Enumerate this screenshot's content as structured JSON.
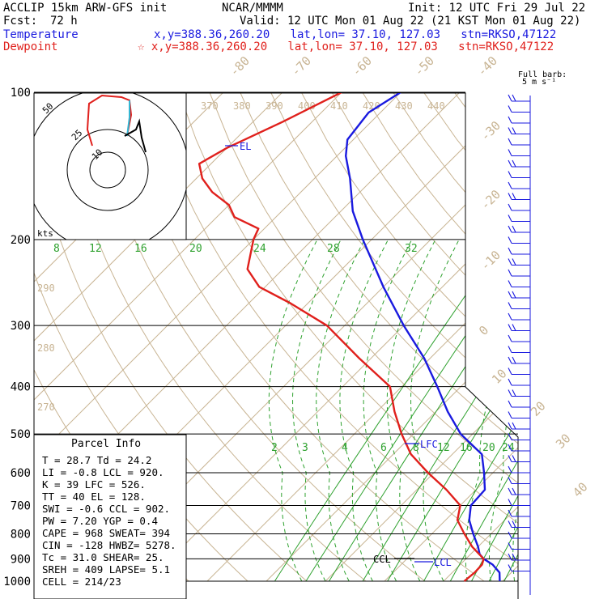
{
  "header": {
    "model": "ACCLIP 15km ARW-GFS init",
    "org": "NCAR/MMMM",
    "init": "Init: 12 UTC Fri 29 Jul 22",
    "fcst_label": "Fcst:",
    "fcst_value": "72 h",
    "valid": "Valid: 12 UTC Mon 01 Aug 22 (21 KST Mon 01 Aug 22)",
    "temp_label": "Temperature",
    "temp_loc": "x,y=388.36,260.20   lat,lon= 37.10, 127.03   stn=RKSO,47122",
    "dew_label": "Dewpoint",
    "dew_loc": "☆ x,y=388.36,260.20   lat,lon= 37.10, 127.03   stn=RKSO,47122"
  },
  "colors": {
    "temperature": "#1a1adf",
    "dewpoint": "#e0201c",
    "mixing_ratio": "#2ea12e",
    "adiabat": "#c8b493",
    "isobar": "#000000"
  },
  "barb_legend": {
    "line1": "Full barb:",
    "line2": "5 m s⁻¹"
  },
  "labels": {
    "el": "EL",
    "lfc": "LFC",
    "ccl": "CCL",
    "lcl": "LCL",
    "kts": "kts"
  },
  "parcel_info": {
    "title": "Parcel Info",
    "rows": [
      "T  =   28.7 Td =  24.2",
      "LI =   -0.8 LCL =  920.",
      "K  =     39 LFC =  526.",
      "TT =     40 EL  =  128.",
      "SWI =  -0.6 CCL =  902.",
      "PW =   7.20 YGP =   0.4",
      "CAPE =  968 SWEAT=  394",
      "CIN =  -128 HWBZ= 5278.",
      "Tc =   31.0 SHEAR=  25.",
      "SREH =  409 LAPSE=  5.1",
      "CELL = 214/23"
    ]
  },
  "chart_data": {
    "type": "line",
    "subtype": "skew-T log-P",
    "y_axis": {
      "label": "",
      "scale": "log",
      "range": [
        1000,
        100
      ],
      "ticks": [
        100,
        200,
        300,
        400,
        500,
        600,
        700,
        800,
        900,
        1000
      ]
    },
    "temp_ticks": [
      -80,
      -70,
      -60,
      -50,
      -40,
      -30,
      -20,
      -10,
      0,
      10,
      20,
      30,
      40
    ],
    "theta_ticks": [
      "370",
      "380",
      "390",
      "400",
      "410",
      "420",
      "430",
      "440",
      "290",
      "280",
      "270"
    ],
    "mixing_ratio_ticks_top": [
      "8",
      "12",
      "16",
      "20",
      "24",
      "28",
      "32"
    ],
    "mixing_ratio_ticks_low": [
      "2",
      "3",
      "4",
      "6",
      "8",
      "12",
      "16",
      "20",
      "24"
    ],
    "series": [
      {
        "name": "Temperature",
        "points": [
          [
            1000,
            29.5
          ],
          [
            960,
            28
          ],
          [
            925,
            25.5
          ],
          [
            900,
            23
          ],
          [
            880,
            21.5
          ],
          [
            850,
            20
          ],
          [
            800,
            17
          ],
          [
            750,
            14
          ],
          [
            700,
            11.8
          ],
          [
            650,
            11.5
          ],
          [
            600,
            8.5
          ],
          [
            550,
            5
          ],
          [
            500,
            -2
          ],
          [
            450,
            -8
          ],
          [
            400,
            -14
          ],
          [
            350,
            -21
          ],
          [
            300,
            -30
          ],
          [
            250,
            -40
          ],
          [
            200,
            -51.5
          ],
          [
            175,
            -58
          ],
          [
            150,
            -64
          ],
          [
            135,
            -68.5
          ],
          [
            125,
            -71
          ],
          [
            110,
            -72
          ],
          [
            100,
            -70
          ]
        ]
      },
      {
        "name": "Dewpoint",
        "points": [
          [
            1000,
            23.5
          ],
          [
            960,
            23.8
          ],
          [
            925,
            23.7
          ],
          [
            900,
            23
          ],
          [
            850,
            19
          ],
          [
            800,
            15.5
          ],
          [
            750,
            12
          ],
          [
            700,
            10
          ],
          [
            650,
            5
          ],
          [
            600,
            -1
          ],
          [
            550,
            -7
          ],
          [
            500,
            -12
          ],
          [
            450,
            -17
          ],
          [
            400,
            -22
          ],
          [
            350,
            -32
          ],
          [
            300,
            -43
          ],
          [
            270,
            -53
          ],
          [
            250,
            -61
          ],
          [
            230,
            -66
          ],
          [
            200,
            -70
          ],
          [
            190,
            -71
          ],
          [
            180,
            -77
          ],
          [
            170,
            -80
          ],
          [
            160,
            -85
          ],
          [
            150,
            -89
          ],
          [
            140,
            -92
          ],
          [
            130,
            -90
          ],
          [
            115,
            -85
          ],
          [
            100,
            -80
          ]
        ]
      }
    ],
    "hodograph": {
      "rings": [
        "10",
        "25",
        "50"
      ]
    }
  }
}
